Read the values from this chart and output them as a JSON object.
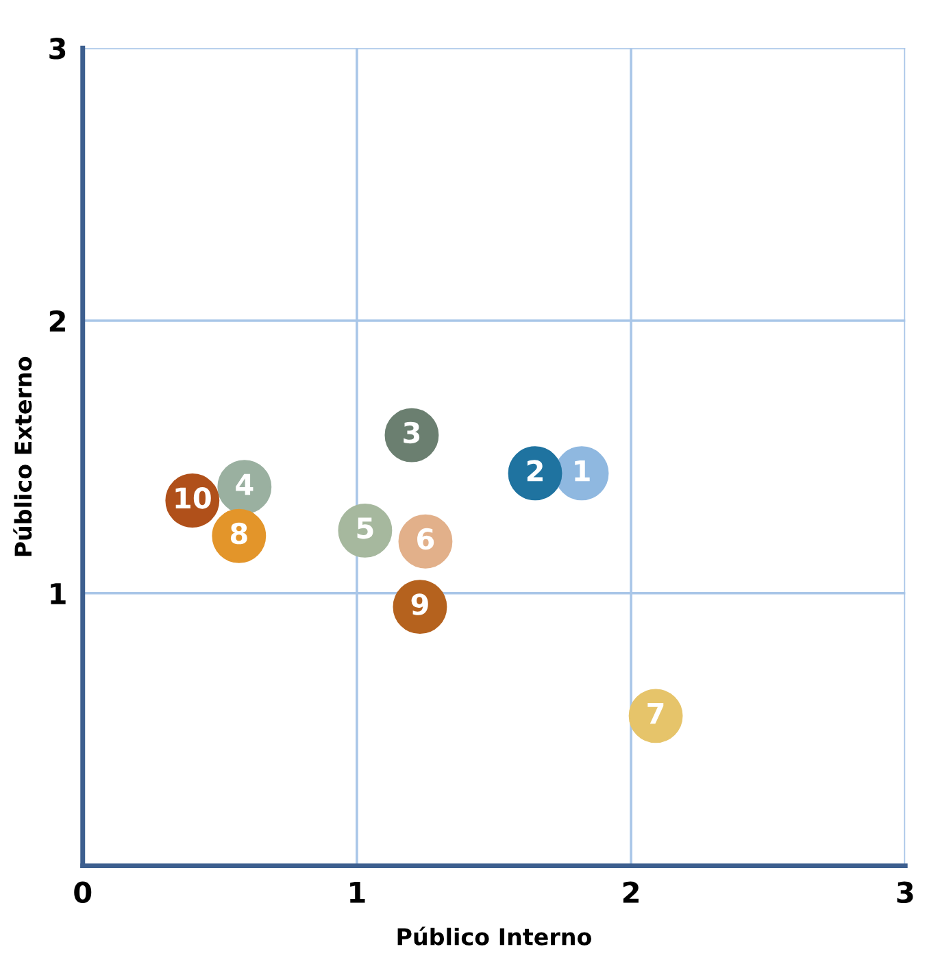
{
  "chart_data": {
    "type": "scatter",
    "xlabel": "Público Interno",
    "ylabel": "Público Externo",
    "xlim": [
      0,
      3
    ],
    "ylim": [
      0,
      3
    ],
    "xticks": [
      0,
      1,
      2,
      3
    ],
    "yticks": [
      {
        "value": 0,
        "label": null
      },
      1,
      2,
      3
    ],
    "grid": true,
    "legend": false,
    "marker": "circle",
    "series": [
      {
        "name": "1",
        "color": "#8fb8e0",
        "x": [
          1.82
        ],
        "values": [
          1.44
        ]
      },
      {
        "name": "2",
        "color": "#1f73a0",
        "x": [
          1.65
        ],
        "values": [
          1.44
        ]
      },
      {
        "name": "3",
        "color": "#6b7f70",
        "x": [
          1.2
        ],
        "values": [
          1.58
        ]
      },
      {
        "name": "4",
        "color": "#9ab0a0",
        "x": [
          0.59
        ],
        "values": [
          1.39
        ]
      },
      {
        "name": "5",
        "color": "#a6b89e",
        "x": [
          1.03
        ],
        "values": [
          1.23
        ]
      },
      {
        "name": "6",
        "color": "#e2b08a",
        "x": [
          1.25
        ],
        "values": [
          1.19
        ]
      },
      {
        "name": "7",
        "color": "#e6c46a",
        "x": [
          2.09
        ],
        "values": [
          0.55
        ]
      },
      {
        "name": "8",
        "color": "#e3952a",
        "x": [
          0.57
        ],
        "values": [
          1.21
        ]
      },
      {
        "name": "9",
        "color": "#b5621e",
        "x": [
          1.23
        ],
        "values": [
          0.95
        ]
      },
      {
        "name": "10",
        "color": "#b0501a",
        "x": [
          0.4
        ],
        "values": [
          1.34
        ]
      }
    ]
  }
}
